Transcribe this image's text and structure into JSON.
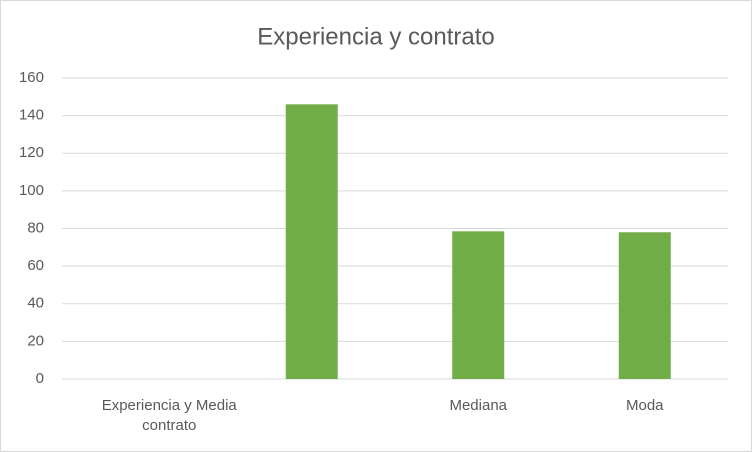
{
  "chart_data": {
    "type": "bar",
    "title": "Experiencia y contrato",
    "categories": [
      "Experiencia y Media contrato",
      null,
      "Mediana",
      "Moda"
    ],
    "values": [
      null,
      146,
      78.5,
      78
    ],
    "color": "#70ad47",
    "ylim": [
      0,
      160
    ],
    "yticks": [
      0,
      20,
      40,
      60,
      80,
      100,
      120,
      140,
      160
    ],
    "grid": true
  }
}
